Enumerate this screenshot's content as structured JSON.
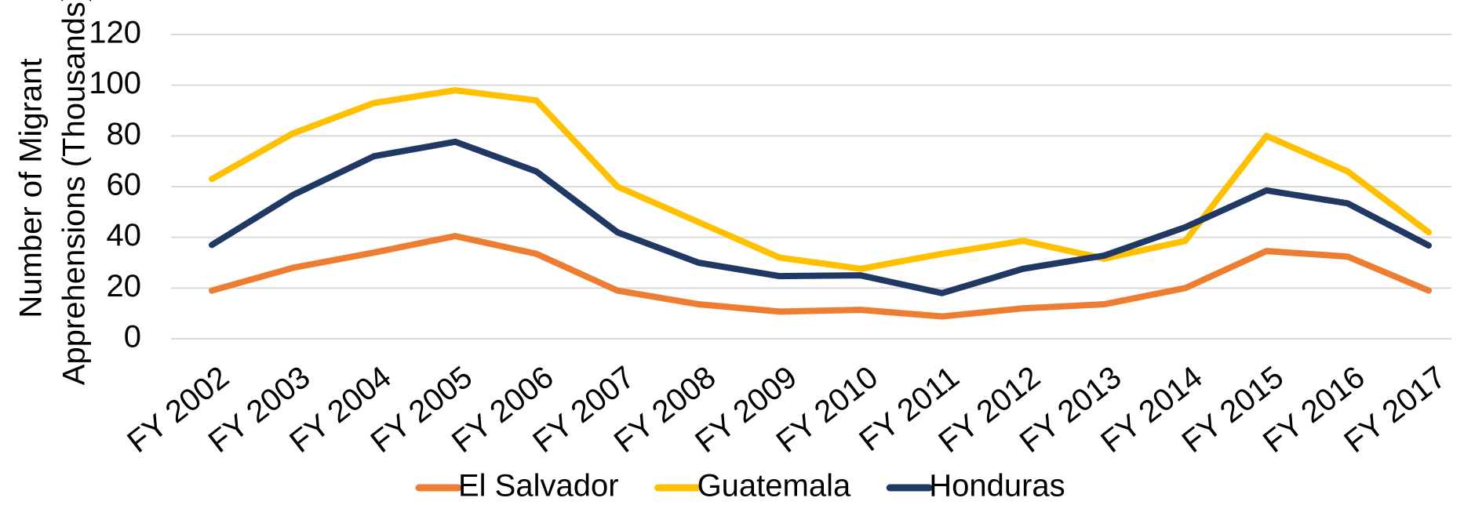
{
  "chart_data": {
    "type": "line",
    "ylabel": [
      "Number of Migrant",
      "Apprehensions  (Thousands)"
    ],
    "categories": [
      "FY 2002",
      "FY 2003",
      "FY 2004",
      "FY 2005",
      "FY 2006",
      "FY 2007",
      "FY 2008",
      "FY 2009",
      "FY 2010",
      "FY 2011",
      "FY 2012",
      "FY 2013",
      "FY 2014",
      "FY 2015",
      "FY 2016",
      "FY 2017"
    ],
    "series": [
      {
        "name": "El Salvador",
        "color": "#ed7d31",
        "values": [
          19,
          28,
          34,
          40.5,
          33.5,
          19,
          13.6,
          10.7,
          11.4,
          8.8,
          12,
          13.6,
          20,
          34.6,
          32.4,
          19
        ]
      },
      {
        "name": "Guatemala",
        "color": "#ffc000",
        "values": [
          63,
          81,
          93,
          98,
          94,
          60,
          46,
          32,
          27.6,
          33.5,
          38.6,
          31.6,
          38.6,
          80,
          66,
          42
        ]
      },
      {
        "name": "Honduras",
        "color": "#203864",
        "values": [
          37,
          56.7,
          72,
          77.7,
          66,
          42,
          30,
          24.7,
          25,
          18,
          27.6,
          32.8,
          44,
          58.5,
          53.4,
          36.8
        ]
      }
    ],
    "ylim": [
      0,
      120
    ],
    "yticks": [
      0,
      20,
      40,
      60,
      80,
      100,
      120
    ],
    "grid": true,
    "legend": "bottom"
  }
}
